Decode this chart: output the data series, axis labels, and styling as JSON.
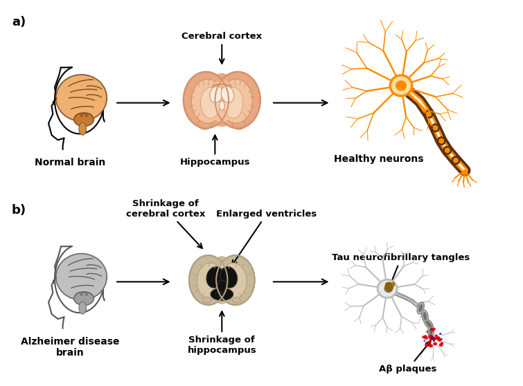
{
  "title_a": "a)",
  "title_b": "b)",
  "label_normal_brain": "Normal brain",
  "label_alzheimer_brain": "Alzheimer disease\nbrain",
  "label_cerebral_cortex": "Cerebral cortex",
  "label_hippocampus": "Hippocampus",
  "label_healthy_neurons": "Healthy neurons",
  "label_shrinkage_cortex": "Shrinkage of\ncerebral cortex",
  "label_enlarged_ventricles": "Enlarged ventricles",
  "label_shrinkage_hippo": "Shrinkage of\nhippocampus",
  "label_tau": "Tau neurofibrillary tangles",
  "label_abeta": "Aβ plaques",
  "bg_color": "#ffffff",
  "orange": "#FF8C00",
  "orange_light": "#FFA500",
  "peach_fill": "#FFDAB9",
  "brown_dark": "#5C2E00",
  "brown_axon": "#6B3A2A",
  "coronal_outer": "#E8A882",
  "coronal_mid": "#D4906A",
  "coronal_inner": "#F2C4A0",
  "coronal_wm": "#F5D5B8",
  "coronal_vent": "#F9E8D8",
  "ad_outer": "#C8B89A",
  "ad_mid": "#B0A080",
  "ad_inner": "#D8C8A8",
  "ad_black": "#111111",
  "gray_dend": "#BBBBBB",
  "gray_soma": "#D8D8D8",
  "gray_nucleus": "#909090",
  "tau_brown": "#8B5E00",
  "red_plaque": "#DD0000",
  "blue_plaque": "#1111CC",
  "capsule_gray": "#C0C0C0",
  "text_black": "#000000",
  "fontsize_label": 9.5,
  "fontsize_title": 10,
  "fontsize_section": 13
}
